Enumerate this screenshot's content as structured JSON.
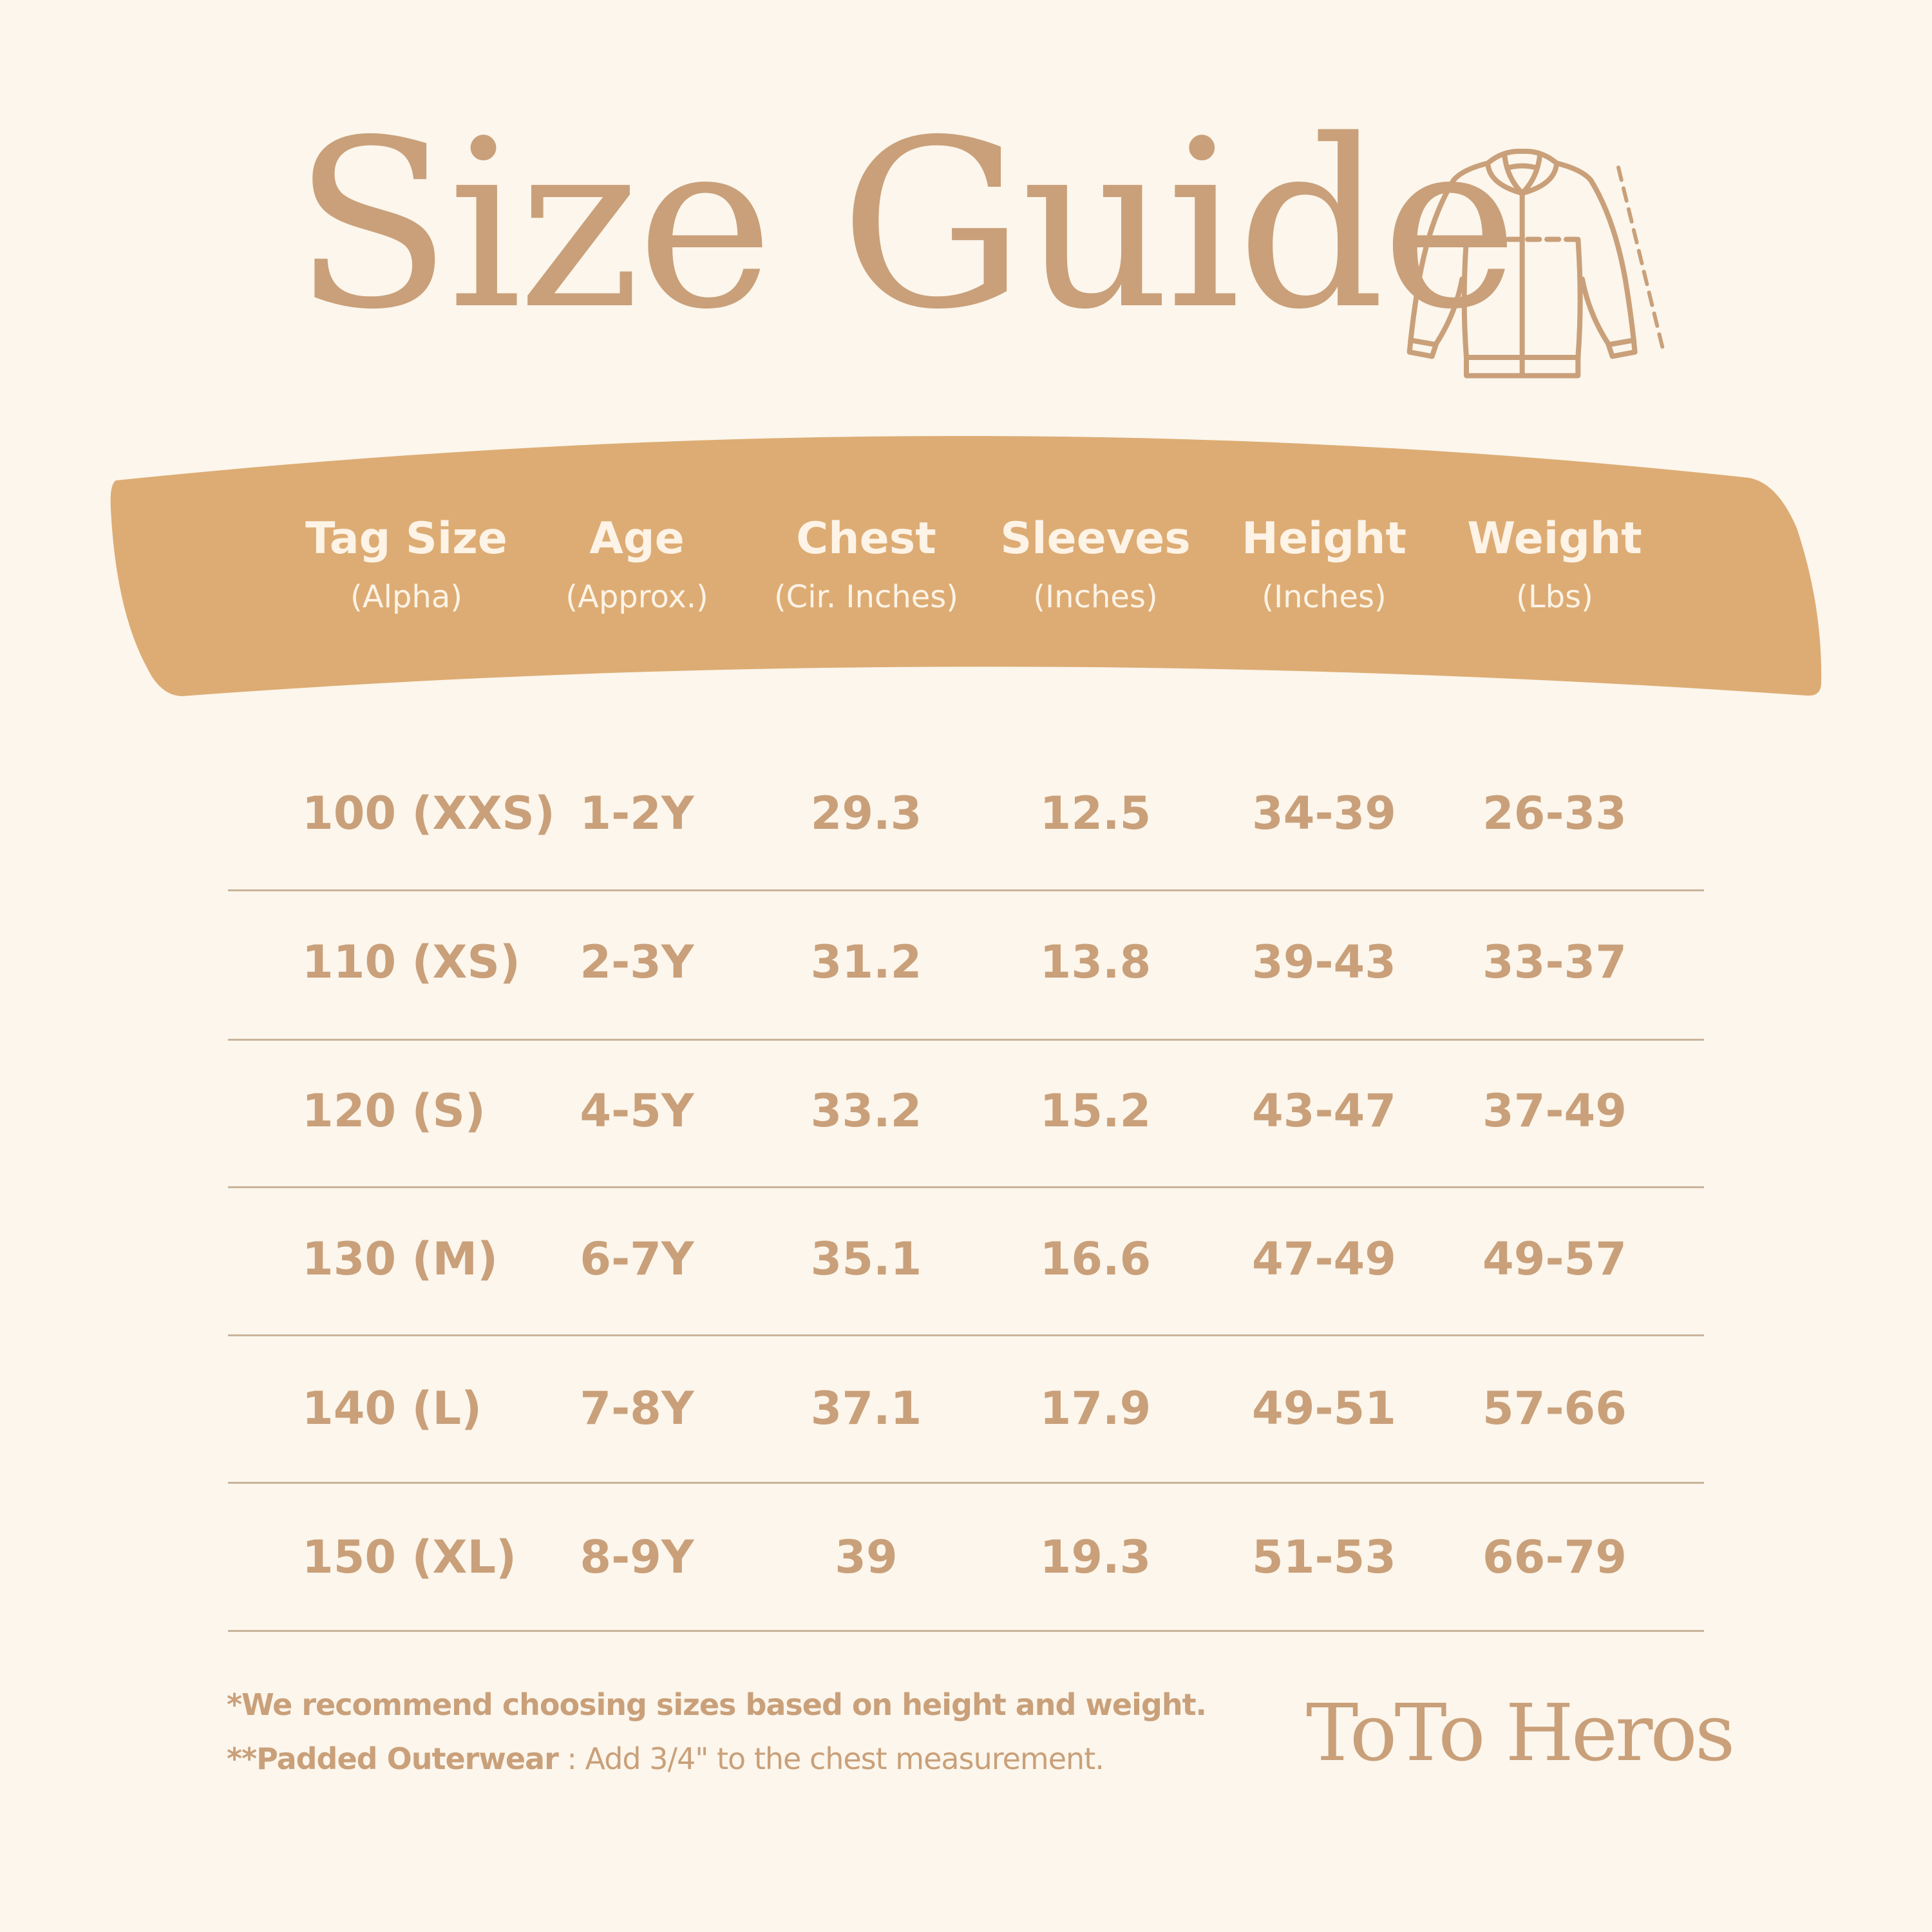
{
  "title": "Size Guide",
  "colors": {
    "background": "#fcf6ec",
    "banner": "#ddac74",
    "text": "#c9a07a",
    "header_text": "#fdf3e6"
  },
  "icons": {
    "garment": "jacket-icon"
  },
  "columns": [
    {
      "title": "Tag Size",
      "subtitle": "(Alpha)"
    },
    {
      "title": "Age",
      "subtitle": "(Approx.)"
    },
    {
      "title": "Chest",
      "subtitle": "(Cir. Inches)"
    },
    {
      "title": "Sleeves",
      "subtitle": "(Inches)"
    },
    {
      "title": "Height",
      "subtitle": "(Inches)"
    },
    {
      "title": "Weight",
      "subtitle": "(Lbs)"
    }
  ],
  "rows": [
    [
      "100 (XXS)",
      "1-2Y",
      "29.3",
      "12.5",
      "34-39",
      "26-33"
    ],
    [
      "110 (XS)",
      "2-3Y",
      "31.2",
      "13.8",
      "39-43",
      "33-37"
    ],
    [
      "120 (S)",
      "4-5Y",
      "33.2",
      "15.2",
      "43-47",
      "37-49"
    ],
    [
      "130 (M)",
      "6-7Y",
      "35.1",
      "16.6",
      "47-49",
      "49-57"
    ],
    [
      "140 (L)",
      "7-8Y",
      "37.1",
      "17.9",
      "49-51",
      "57-66"
    ],
    [
      "150 (XL)",
      "8-9Y",
      "39",
      "19.3",
      "51-53",
      "66-79"
    ]
  ],
  "notes": {
    "recommend": "*We recommend choosing sizes based on height and weight.",
    "padded_label": "**Padded Outerwear",
    "padded_sep": " :  ",
    "padded_text": "Add 3/4\" to the chest measurement."
  },
  "brand": "ToTo Heros"
}
